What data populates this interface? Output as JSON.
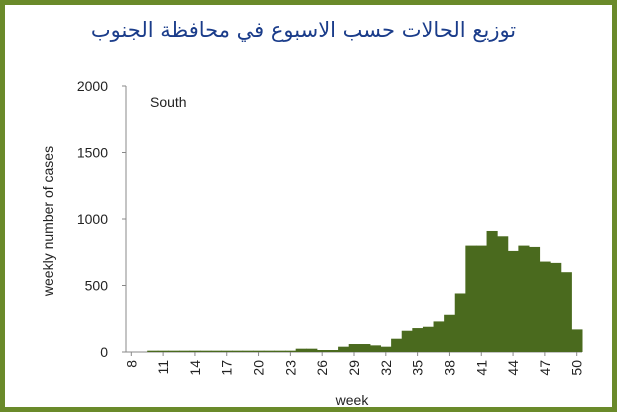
{
  "chart_data": {
    "type": "bar",
    "title": "توزيع الحالات حسب الاسبوع في محافظة الجنوب",
    "annotation": "South",
    "xlabel": "week",
    "ylabel": "weekly number of cases",
    "ylim": [
      0,
      2000
    ],
    "yticks": [
      0,
      500,
      1000,
      1500,
      2000
    ],
    "xticks": [
      8,
      11,
      14,
      17,
      20,
      23,
      26,
      29,
      32,
      35,
      38,
      41,
      44,
      47,
      50
    ],
    "bar_color": "#4a6a1e",
    "categories": [
      8,
      9,
      10,
      11,
      12,
      13,
      14,
      15,
      16,
      17,
      18,
      19,
      20,
      21,
      22,
      23,
      24,
      25,
      26,
      27,
      28,
      29,
      30,
      31,
      32,
      33,
      34,
      35,
      36,
      37,
      38,
      39,
      40,
      41,
      42,
      43,
      44,
      45,
      46,
      47,
      48,
      49,
      50
    ],
    "values": [
      0,
      0,
      10,
      10,
      10,
      10,
      10,
      10,
      10,
      10,
      10,
      10,
      10,
      10,
      10,
      10,
      25,
      25,
      15,
      15,
      40,
      60,
      60,
      50,
      40,
      100,
      160,
      180,
      190,
      230,
      280,
      440,
      800,
      800,
      910,
      870,
      760,
      800,
      790,
      680,
      670,
      600,
      170
    ]
  },
  "frame_color": "#6a8a2a",
  "title_color": "#1a3c8a"
}
